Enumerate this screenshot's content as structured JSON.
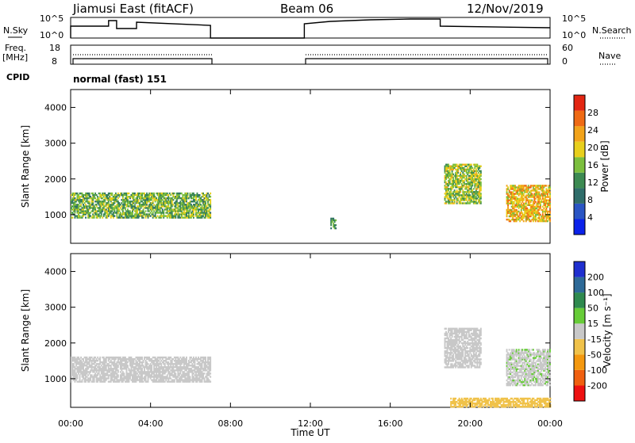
{
  "header": {
    "station": "Jiamusi East (fitACF)",
    "beam": "Beam 06",
    "date": "12/Nov/2019"
  },
  "status_panel": {
    "nsky_label": "N.Sky",
    "nsky_ticks": [
      "10^5",
      "10^0"
    ],
    "nsearch_label": "N.Search",
    "nsearch_ticks": [
      "10^5",
      "10^0"
    ],
    "freq_label_1": "Freq.",
    "freq_label_2": "[MHz]",
    "freq_ticks": [
      "18",
      "8"
    ],
    "nave_label": "Nave",
    "nave_ticks": [
      "60",
      "0"
    ],
    "cpid_label": "CPID",
    "cpid_value": "normal (fast) 151"
  },
  "colors": {
    "power_scale": [
      "#0b22ea",
      "#2a55c4",
      "#2f6d6a",
      "#3c8a52",
      "#7cbf3e",
      "#e8cf1c",
      "#f2a31a",
      "#ef6a14",
      "#e32612"
    ],
    "velocity_scale": [
      "#ee1111",
      "#f06010",
      "#f4980f",
      "#f0c24a",
      "#c8c8c8",
      "#67cc38",
      "#2f8a4f",
      "#2e6a98",
      "#1f2fcf"
    ]
  },
  "chart_data": [
    {
      "type": "heatmap",
      "panel": "power",
      "ylabel": "Slant Range [km]",
      "yticks": [
        "4000",
        "3000",
        "2000",
        "1000"
      ],
      "ylim": [
        200,
        4500
      ],
      "colorbar_label": "Power [dB]",
      "colorbar_ticks": [
        "28",
        "24",
        "20",
        "16",
        "12",
        "8",
        "4"
      ],
      "colorbar_range": [
        0,
        30
      ],
      "echo_regions": [
        {
          "t_start": 0.0,
          "t_end": 7.0,
          "r_low": 900,
          "r_high": 1600,
          "power_db": 14
        },
        {
          "t_start": 13.0,
          "t_end": 13.3,
          "r_low": 600,
          "r_high": 900,
          "power_db": 12
        },
        {
          "t_start": 18.7,
          "t_end": 20.5,
          "r_low": 1300,
          "r_high": 2400,
          "power_db": 16
        },
        {
          "t_start": 21.8,
          "t_end": 24.0,
          "r_low": 800,
          "r_high": 1800,
          "power_db": 20
        }
      ]
    },
    {
      "type": "heatmap",
      "panel": "velocity",
      "ylabel": "Slant Range [km]",
      "yticks": [
        "4000",
        "3000",
        "2000",
        "1000"
      ],
      "ylim": [
        200,
        4500
      ],
      "xlabel": "Time UT",
      "xticks": [
        "00:00",
        "04:00",
        "08:00",
        "12:00",
        "16:00",
        "20:00",
        "00:00"
      ],
      "xlim_hours": [
        0,
        24
      ],
      "colorbar_label": "Velocity [m s⁻¹]",
      "colorbar_ticks": [
        "200",
        "100",
        "50",
        "15",
        "-15",
        "-50",
        "-100",
        "-200"
      ],
      "colorbar_range": [
        -300,
        300
      ],
      "echo_regions": [
        {
          "t_start": 0.0,
          "t_end": 7.0,
          "r_low": 900,
          "r_high": 1600,
          "velocity": 0
        },
        {
          "t_start": 18.7,
          "t_end": 20.5,
          "r_low": 1300,
          "r_high": 2400,
          "velocity": 0
        },
        {
          "t_start": 21.8,
          "t_end": 24.0,
          "r_low": 800,
          "r_high": 1800,
          "velocity": 20
        },
        {
          "t_start": 19.0,
          "t_end": 24.0,
          "r_low": 200,
          "r_high": 450,
          "velocity": -60
        }
      ]
    }
  ]
}
